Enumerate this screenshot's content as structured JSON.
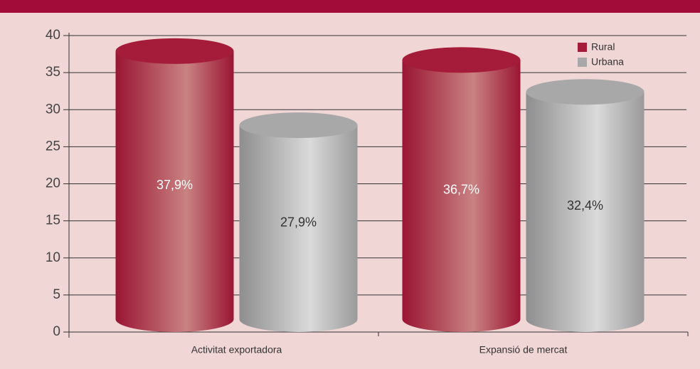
{
  "chart_data": {
    "type": "bar",
    "categories": [
      "Activitat exportadora",
      "Expansió de mercat"
    ],
    "series": [
      {
        "name": "Rural",
        "color": "#a51c3a",
        "values": [
          37.9,
          36.7
        ],
        "value_labels": [
          "37,9%",
          "36,7%"
        ]
      },
      {
        "name": "Urbana",
        "color": "#a8a8a8",
        "values": [
          27.9,
          32.4
        ],
        "value_labels": [
          "27,9%",
          "32,4%"
        ]
      }
    ],
    "ylim": [
      0,
      40
    ],
    "yticks": [
      0,
      5,
      10,
      15,
      20,
      25,
      30,
      35,
      40
    ],
    "grid": true,
    "legend": "upper right"
  }
}
